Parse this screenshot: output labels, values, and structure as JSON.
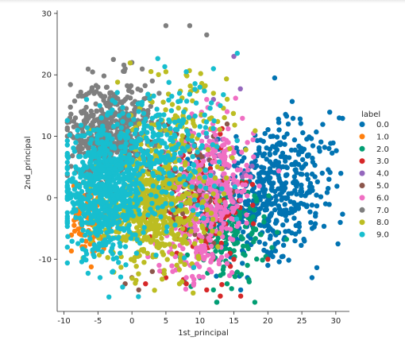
{
  "chart_data": {
    "type": "scatter",
    "xlabel": "1st_principal",
    "ylabel": "2nd_principal",
    "xlim": [
      -11,
      32
    ],
    "ylim": [
      -18.5,
      30.5
    ],
    "xticks": [
      -10,
      -5,
      0,
      5,
      10,
      15,
      20,
      25,
      30
    ],
    "yticks": [
      -10,
      0,
      10,
      20,
      30
    ],
    "grid": false,
    "legend": {
      "title": "label",
      "placement": "right",
      "entries": [
        {
          "label": "0.0",
          "color": "#0173b2"
        },
        {
          "label": "1.0",
          "color": "#ff7f0e"
        },
        {
          "label": "2.0",
          "color": "#029e73"
        },
        {
          "label": "3.0",
          "color": "#d62728"
        },
        {
          "label": "4.0",
          "color": "#9467bd"
        },
        {
          "label": "5.0",
          "color": "#8c564b"
        },
        {
          "label": "6.0",
          "color": "#f06fc3"
        },
        {
          "label": "7.0",
          "color": "#7f7f7f"
        },
        {
          "label": "8.0",
          "color": "#bcbd22"
        },
        {
          "label": "9.0",
          "color": "#17becf"
        }
      ]
    },
    "series": [
      {
        "name": "0.0",
        "color": "#0173b2",
        "clusters": [
          {
            "cx": 19,
            "cy": 0,
            "sx": 4.2,
            "sy": 5.5,
            "n": 380
          },
          {
            "cx": 24,
            "cy": 3,
            "sx": 3.5,
            "sy": 5.0,
            "n": 130
          }
        ],
        "points": [
          [
            30.5,
            13
          ],
          [
            29,
            8
          ],
          [
            28,
            4
          ],
          [
            27,
            -3
          ],
          [
            26.5,
            -13
          ],
          [
            21,
            19.5
          ],
          [
            26,
            7
          ],
          [
            25,
            1
          ],
          [
            29,
            3
          ],
          [
            28.5,
            -1
          ],
          [
            24,
            -7
          ],
          [
            23,
            12
          ],
          [
            20,
            -11
          ],
          [
            17,
            -13
          ],
          [
            16,
            -15
          ]
        ]
      },
      {
        "name": "1.0",
        "color": "#ff7f0e",
        "clusters": [
          {
            "cx": -6,
            "cy": -3,
            "sx": 1.4,
            "sy": 3.0,
            "n": 90
          }
        ],
        "points": [
          [
            -8.5,
            -4.5
          ],
          [
            -7.5,
            -6
          ],
          [
            -5,
            -8
          ]
        ]
      },
      {
        "name": "2.0",
        "color": "#029e73",
        "clusters": [
          {
            "cx": 14,
            "cy": -6,
            "sx": 3.0,
            "sy": 4.0,
            "n": 160
          }
        ],
        "points": [
          [
            14,
            -14
          ],
          [
            12,
            -15
          ],
          [
            17,
            -11
          ],
          [
            19,
            -6
          ],
          [
            18,
            -2
          ],
          [
            10,
            -13
          ]
        ]
      },
      {
        "name": "3.0",
        "color": "#d62728",
        "clusters": [
          {
            "cx": 10,
            "cy": -1,
            "sx": 3.5,
            "sy": 5.0,
            "n": 120
          }
        ],
        "points": [
          [
            13,
            -16
          ],
          [
            11,
            -15
          ],
          [
            8,
            -14
          ],
          [
            5,
            -13
          ],
          [
            2,
            -14
          ],
          [
            15,
            -10
          ],
          [
            16,
            -16
          ],
          [
            20,
            -10
          ]
        ]
      },
      {
        "name": "4.0",
        "color": "#9467bd",
        "clusters": [
          {
            "cx": 11,
            "cy": 4,
            "sx": 3.0,
            "sy": 4.0,
            "n": 60
          }
        ],
        "points": [
          [
            15,
            23
          ],
          [
            12,
            16
          ],
          [
            9,
            13
          ]
        ]
      },
      {
        "name": "5.0",
        "color": "#8c564b",
        "clusters": [
          {
            "cx": 7,
            "cy": 2,
            "sx": 3.5,
            "sy": 5.0,
            "n": 110
          }
        ],
        "points": [
          [
            -1,
            -14
          ],
          [
            1,
            -15
          ],
          [
            0,
            -13
          ],
          [
            3,
            -12
          ],
          [
            12,
            10
          ],
          [
            14,
            12
          ]
        ]
      },
      {
        "name": "6.0",
        "color": "#f06fc3",
        "clusters": [
          {
            "cx": 12,
            "cy": 2,
            "sx": 3.0,
            "sy": 5.5,
            "n": 300
          },
          {
            "cx": 9,
            "cy": -9,
            "sx": 2.5,
            "sy": 2.5,
            "n": 60
          }
        ],
        "points": [
          [
            17,
            9
          ],
          [
            14,
            14
          ],
          [
            11,
            16
          ],
          [
            6,
            -12
          ],
          [
            4,
            -11
          ],
          [
            8,
            -13
          ]
        ]
      },
      {
        "name": "7.0",
        "color": "#7f7f7f",
        "clusters": [
          {
            "cx": -3,
            "cy": 11,
            "sx": 3.0,
            "sy": 4.0,
            "n": 500
          }
        ],
        "points": [
          [
            5,
            28
          ],
          [
            8.5,
            28
          ],
          [
            11,
            26.5
          ],
          [
            0,
            22
          ],
          [
            -1,
            21
          ],
          [
            -5,
            18
          ],
          [
            3,
            19
          ],
          [
            4,
            17
          ],
          [
            -7,
            14
          ],
          [
            -8,
            8
          ]
        ]
      },
      {
        "name": "8.0",
        "color": "#bcbd22",
        "clusters": [
          {
            "cx": 3,
            "cy": -2,
            "sx": 3.8,
            "sy": 4.5,
            "n": 550
          },
          {
            "cx": 6,
            "cy": 10,
            "sx": 4.0,
            "sy": 5.0,
            "n": 150
          }
        ],
        "points": [
          [
            5,
            20.5
          ],
          [
            8,
            20
          ],
          [
            9,
            -15.5
          ],
          [
            7,
            -14
          ],
          [
            12,
            17
          ],
          [
            -6,
            -7
          ]
        ]
      },
      {
        "name": "9.0",
        "color": "#17becf",
        "clusters": [
          {
            "cx": -4,
            "cy": 1,
            "sx": 3.0,
            "sy": 5.0,
            "n": 700
          },
          {
            "cx": 5,
            "cy": 8,
            "sx": 4.0,
            "sy": 5.5,
            "n": 250
          }
        ],
        "points": [
          [
            15.5,
            23.5
          ],
          [
            12,
            21
          ],
          [
            8,
            20.5
          ],
          [
            10,
            18
          ],
          [
            7,
            17
          ],
          [
            13,
            15
          ],
          [
            -9,
            0
          ],
          [
            -9.5,
            2
          ]
        ]
      }
    ]
  }
}
